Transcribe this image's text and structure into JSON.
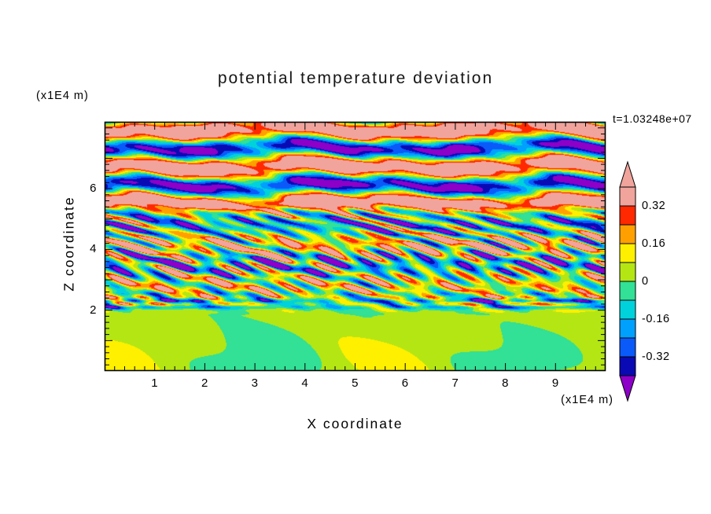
{
  "page": {
    "background": "#ffffff",
    "text_color": "#000000"
  },
  "chart_data": {
    "type": "contour",
    "title": "potential temperature deviation",
    "xlabel": "X coordinate",
    "ylabel": "Z coordinate",
    "x_unit_label": "(x1E4 m)",
    "z_unit_label": "(x1E4 m)",
    "timestamp": "t=1.03248e+07",
    "x_range": [
      0,
      10
    ],
    "z_range": [
      0,
      8.2
    ],
    "x_ticks": {
      "major_step": 1,
      "minor_step": 0.2,
      "labels": [
        "1",
        "2",
        "3",
        "4",
        "5",
        "6",
        "7",
        "8",
        "9"
      ]
    },
    "z_ticks": {
      "major_step": 1,
      "minor_step": 0.2,
      "labels": [
        "2",
        "4",
        "6"
      ]
    },
    "levels": [
      -0.4,
      -0.32,
      -0.24,
      -0.16,
      -0.08,
      0,
      0.08,
      0.16,
      0.24,
      0.32,
      0.4
    ],
    "colorbar": {
      "tick_labels": [
        "0.32",
        "0.16",
        "0",
        "-0.16",
        "-0.32"
      ],
      "tick_values": [
        0.32,
        0.16,
        0,
        -0.16,
        -0.32
      ],
      "below_color": "#8C00C8",
      "above_color": "#F0A49C",
      "colors": [
        "#0A0AB4",
        "#0A5AFA",
        "#00A0FF",
        "#00D2DC",
        "#32E096",
        "#B4E614",
        "#FFF000",
        "#FFA000",
        "#FF2800",
        "#F0A49C"
      ]
    },
    "field_description": "Vertical cross-section of potential temperature deviation: calm near-zero (green) layer below z=2e4 m, fine-scale turbulent warm/cold streaks (yellow-orange-red vs cyan-navy) between z=2e4 and 5.5e4 m, and large-amplitude horizontally banded gravity-wave layers (salmon positive, purple negative) above z=5.5e4 m.",
    "field_generator": {
      "seed": 20240321,
      "mid_mode_count": 8,
      "bottom": {
        "bias": 0.028,
        "amp": 0.045
      },
      "mid": {
        "amp": 0.105,
        "layer_amp": 0.13
      },
      "top": {
        "amp": 0.46,
        "band_wavelength": 1.22,
        "bias": 0.05
      },
      "line_layer": {
        "z_center": 2.15,
        "amp": 0.2
      }
    }
  }
}
